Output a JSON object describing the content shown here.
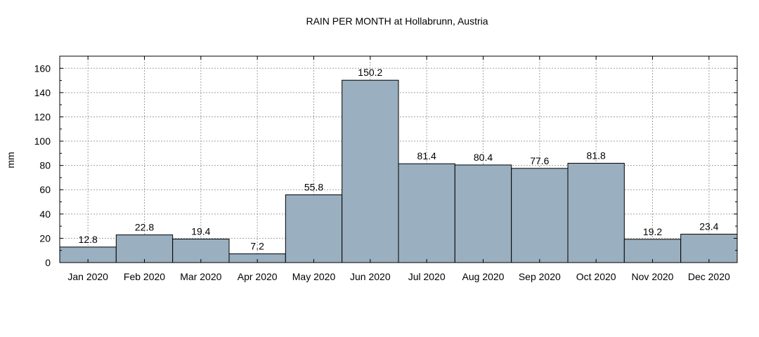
{
  "chart_data": {
    "type": "bar",
    "title": "RAIN PER MONTH at Hollabrunn, Austria",
    "xlabel": "",
    "ylabel": "mm",
    "ylim": [
      0,
      170
    ],
    "yticks": [
      0,
      20,
      40,
      60,
      80,
      100,
      120,
      140,
      160
    ],
    "grid": true,
    "categories": [
      "Jan 2020",
      "Feb 2020",
      "Mar 2020",
      "Apr 2020",
      "May 2020",
      "Jun 2020",
      "Jul 2020",
      "Aug 2020",
      "Sep 2020",
      "Oct 2020",
      "Nov 2020",
      "Dec 2020"
    ],
    "values": [
      12.8,
      22.8,
      19.4,
      7.2,
      55.8,
      150.2,
      81.4,
      80.4,
      77.6,
      81.8,
      19.2,
      23.4
    ],
    "value_labels": [
      "12.8",
      "22.8",
      "19.4",
      "7.2",
      "55.8",
      "150.2",
      "81.4",
      "80.4",
      "77.6",
      "81.8",
      "19.2",
      "23.4"
    ],
    "bar_color": "#9aafbf",
    "bar_edge_color": "#000000",
    "grid_color": "#a0a0a0"
  }
}
